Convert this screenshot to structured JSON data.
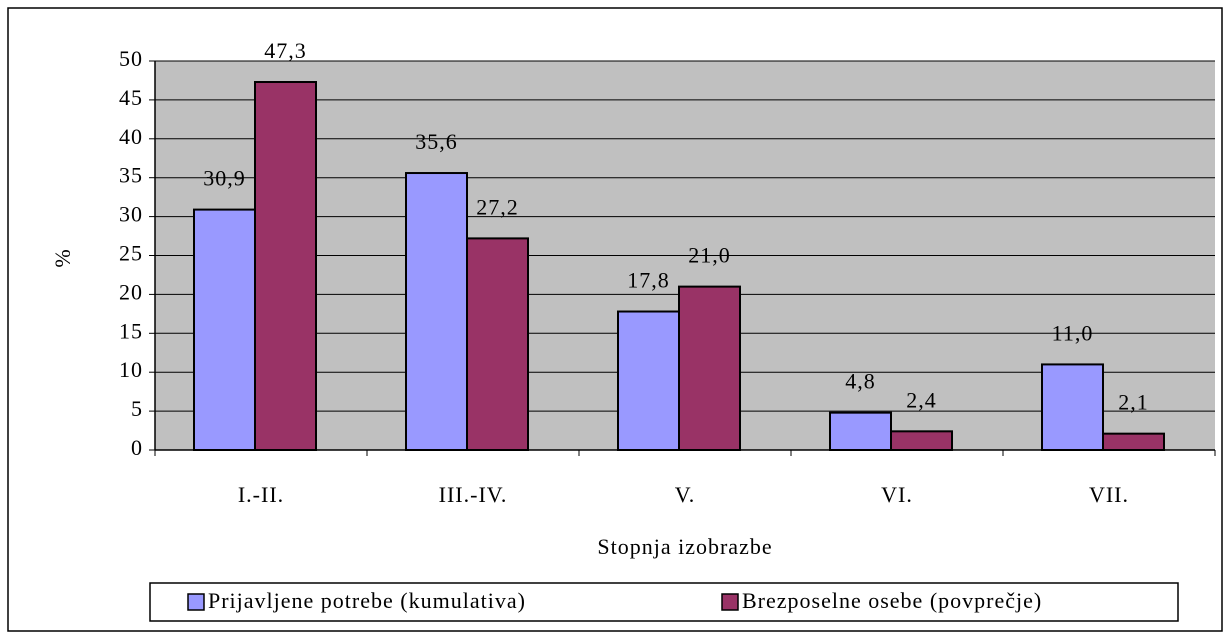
{
  "chart_data": {
    "type": "bar",
    "x_label": "Stopnja izobrazbe",
    "y_label": "%",
    "categories": [
      "I.-II.",
      "III.-IV.",
      "V.",
      "VI.",
      "VII."
    ],
    "series": [
      {
        "name": "Prijavljene potrebe (kumulativa)",
        "color": "#9999ff",
        "values": [
          30.9,
          35.6,
          17.8,
          4.8,
          11.0
        ],
        "value_labels": [
          "30,9",
          "35,6",
          "17,8",
          "4,8",
          "11,0"
        ]
      },
      {
        "name": "Brezposelne osebe (povprečje)",
        "color": "#993366",
        "values": [
          47.3,
          27.2,
          21.0,
          2.4,
          2.1
        ],
        "value_labels": [
          "47,3",
          "27,2",
          "21,0",
          "2,4",
          "2,1"
        ]
      }
    ],
    "ylim": [
      0,
      50
    ],
    "yticks": [
      0,
      5,
      10,
      15,
      20,
      25,
      30,
      35,
      40,
      45,
      50
    ],
    "grid": true,
    "plot_background": "#c0c0c0",
    "legend": "bottom"
  }
}
